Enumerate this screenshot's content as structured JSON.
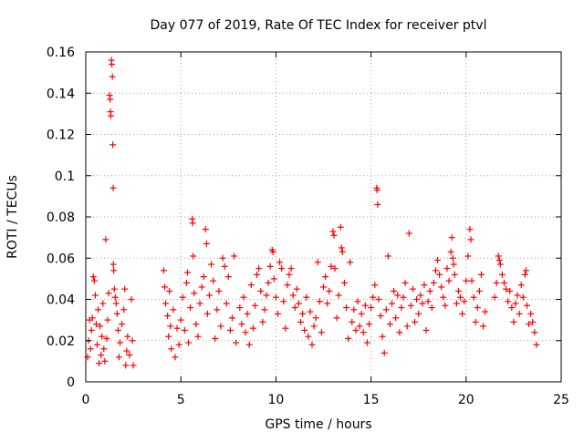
{
  "chart_data": {
    "type": "scatter",
    "title": "Day 077 of 2019, Rate Of TEC Index for receiver ptvl",
    "xlabel": "GPS time / hours",
    "ylabel": "ROTI / TECUs",
    "xlim": [
      0,
      25
    ],
    "ylim": [
      0,
      0.16
    ],
    "x_ticks": [
      0,
      5,
      10,
      15,
      20,
      25
    ],
    "x_tick_labels": [
      "0",
      "5",
      "10",
      "15",
      "20",
      "25"
    ],
    "y_ticks": [
      0,
      0.02,
      0.04,
      0.06,
      0.08,
      0.1,
      0.12,
      0.14,
      0.16
    ],
    "y_tick_labels": [
      "0",
      "0.02",
      "0.04",
      "0.06",
      "0.08",
      "0.1",
      "0.12",
      "0.14",
      "0.16"
    ],
    "grid": true,
    "marker": "+",
    "color": "#ff0000",
    "series": [
      {
        "name": "ROTI",
        "points": [
          [
            0.1,
            0.012
          ],
          [
            0.15,
            0.02
          ],
          [
            0.2,
            0.03
          ],
          [
            0.25,
            0.016
          ],
          [
            0.3,
            0.025
          ],
          [
            0.35,
            0.031
          ],
          [
            0.4,
            0.051
          ],
          [
            0.45,
            0.049
          ],
          [
            0.5,
            0.042
          ],
          [
            0.55,
            0.028
          ],
          [
            0.6,
            0.018
          ],
          [
            0.65,
            0.035
          ],
          [
            0.7,
            0.009
          ],
          [
            0.75,
            0.027
          ],
          [
            0.8,
            0.013
          ],
          [
            0.85,
            0.022
          ],
          [
            0.9,
            0.038
          ],
          [
            0.95,
            0.016
          ],
          [
            1.0,
            0.01
          ],
          [
            1.05,
            0.069
          ],
          [
            1.1,
            0.021
          ],
          [
            1.15,
            0.03
          ],
          [
            1.2,
            0.043
          ],
          [
            1.25,
            0.139
          ],
          [
            1.28,
            0.137
          ],
          [
            1.3,
            0.131
          ],
          [
            1.32,
            0.129
          ],
          [
            1.35,
            0.156
          ],
          [
            1.37,
            0.154
          ],
          [
            1.4,
            0.148
          ],
          [
            1.42,
            0.115
          ],
          [
            1.44,
            0.094
          ],
          [
            1.45,
            0.057
          ],
          [
            1.47,
            0.054
          ],
          [
            1.5,
            0.045
          ],
          [
            1.55,
            0.041
          ],
          [
            1.6,
            0.038
          ],
          [
            1.65,
            0.033
          ],
          [
            1.7,
            0.025
          ],
          [
            1.75,
            0.012
          ],
          [
            1.8,
            0.019
          ],
          [
            1.9,
            0.028
          ],
          [
            2.0,
            0.035
          ],
          [
            2.05,
            0.045
          ],
          [
            2.1,
            0.008
          ],
          [
            2.15,
            0.015
          ],
          [
            2.2,
            0.022
          ],
          [
            2.3,
            0.013
          ],
          [
            2.4,
            0.04
          ],
          [
            2.45,
            0.02
          ],
          [
            2.5,
            0.008
          ],
          [
            4.1,
            0.054
          ],
          [
            4.15,
            0.046
          ],
          [
            4.2,
            0.038
          ],
          [
            4.3,
            0.032
          ],
          [
            4.35,
            0.022
          ],
          [
            4.4,
            0.044
          ],
          [
            4.45,
            0.027
          ],
          [
            4.5,
            0.016
          ],
          [
            4.6,
            0.035
          ],
          [
            4.7,
            0.012
          ],
          [
            4.8,
            0.026
          ],
          [
            4.9,
            0.018
          ],
          [
            5.0,
            0.03
          ],
          [
            5.1,
            0.041
          ],
          [
            5.2,
            0.025
          ],
          [
            5.3,
            0.048
          ],
          [
            5.35,
            0.053
          ],
          [
            5.4,
            0.019
          ],
          [
            5.5,
            0.036
          ],
          [
            5.6,
            0.079
          ],
          [
            5.62,
            0.077
          ],
          [
            5.65,
            0.061
          ],
          [
            5.7,
            0.043
          ],
          [
            5.8,
            0.028
          ],
          [
            5.9,
            0.022
          ],
          [
            6.0,
            0.038
          ],
          [
            6.1,
            0.046
          ],
          [
            6.2,
            0.051
          ],
          [
            6.3,
            0.074
          ],
          [
            6.35,
            0.067
          ],
          [
            6.4,
            0.033
          ],
          [
            6.5,
            0.042
          ],
          [
            6.6,
            0.057
          ],
          [
            6.7,
            0.049
          ],
          [
            6.8,
            0.021
          ],
          [
            6.9,
            0.035
          ],
          [
            7.0,
            0.044
          ],
          [
            7.1,
            0.027
          ],
          [
            7.2,
            0.06
          ],
          [
            7.3,
            0.056
          ],
          [
            7.4,
            0.038
          ],
          [
            7.5,
            0.051
          ],
          [
            7.6,
            0.025
          ],
          [
            7.7,
            0.031
          ],
          [
            7.8,
            0.061
          ],
          [
            7.9,
            0.019
          ],
          [
            8.1,
            0.036
          ],
          [
            8.2,
            0.028
          ],
          [
            8.3,
            0.041
          ],
          [
            8.4,
            0.024
          ],
          [
            8.5,
            0.033
          ],
          [
            8.6,
            0.018
          ],
          [
            8.7,
            0.047
          ],
          [
            8.8,
            0.026
          ],
          [
            8.9,
            0.037
          ],
          [
            9.0,
            0.052
          ],
          [
            9.1,
            0.055
          ],
          [
            9.2,
            0.044
          ],
          [
            9.3,
            0.029
          ],
          [
            9.4,
            0.035
          ],
          [
            9.5,
            0.042
          ],
          [
            9.6,
            0.048
          ],
          [
            9.7,
            0.056
          ],
          [
            9.8,
            0.064
          ],
          [
            9.85,
            0.063
          ],
          [
            9.9,
            0.05
          ],
          [
            10.0,
            0.041
          ],
          [
            10.1,
            0.033
          ],
          [
            10.2,
            0.058
          ],
          [
            10.3,
            0.055
          ],
          [
            10.4,
            0.039
          ],
          [
            10.5,
            0.026
          ],
          [
            10.6,
            0.047
          ],
          [
            10.7,
            0.052
          ],
          [
            10.8,
            0.055
          ],
          [
            10.9,
            0.042
          ],
          [
            11.0,
            0.036
          ],
          [
            11.1,
            0.045
          ],
          [
            11.2,
            0.038
          ],
          [
            11.3,
            0.029
          ],
          [
            11.4,
            0.033
          ],
          [
            11.5,
            0.025
          ],
          [
            11.6,
            0.041
          ],
          [
            11.7,
            0.022
          ],
          [
            11.8,
            0.034
          ],
          [
            11.9,
            0.018
          ],
          [
            12.0,
            0.027
          ],
          [
            12.1,
            0.031
          ],
          [
            12.2,
            0.058
          ],
          [
            12.3,
            0.039
          ],
          [
            12.4,
            0.024
          ],
          [
            12.5,
            0.046
          ],
          [
            12.6,
            0.051
          ],
          [
            12.7,
            0.038
          ],
          [
            12.8,
            0.044
          ],
          [
            12.9,
            0.056
          ],
          [
            13.0,
            0.073
          ],
          [
            13.05,
            0.071
          ],
          [
            13.1,
            0.055
          ],
          [
            13.2,
            0.031
          ],
          [
            13.3,
            0.042
          ],
          [
            13.4,
            0.075
          ],
          [
            13.45,
            0.065
          ],
          [
            13.5,
            0.063
          ],
          [
            13.6,
            0.048
          ],
          [
            13.7,
            0.036
          ],
          [
            13.8,
            0.021
          ],
          [
            13.9,
            0.058
          ],
          [
            14.0,
            0.029
          ],
          [
            14.1,
            0.035
          ],
          [
            14.2,
            0.025
          ],
          [
            14.3,
            0.039
          ],
          [
            14.4,
            0.027
          ],
          [
            14.5,
            0.033
          ],
          [
            14.6,
            0.024
          ],
          [
            14.7,
            0.037
          ],
          [
            14.8,
            0.019
          ],
          [
            14.9,
            0.028
          ],
          [
            15.0,
            0.036
          ],
          [
            15.1,
            0.041
          ],
          [
            15.2,
            0.047
          ],
          [
            15.3,
            0.094
          ],
          [
            15.32,
            0.093
          ],
          [
            15.35,
            0.086
          ],
          [
            15.4,
            0.04
          ],
          [
            15.5,
            0.032
          ],
          [
            15.6,
            0.022
          ],
          [
            15.7,
            0.014
          ],
          [
            15.8,
            0.035
          ],
          [
            15.9,
            0.061
          ],
          [
            16.0,
            0.028
          ],
          [
            16.1,
            0.038
          ],
          [
            16.2,
            0.044
          ],
          [
            16.3,
            0.031
          ],
          [
            16.4,
            0.042
          ],
          [
            16.5,
            0.024
          ],
          [
            16.6,
            0.036
          ],
          [
            16.7,
            0.041
          ],
          [
            16.8,
            0.048
          ],
          [
            16.9,
            0.027
          ],
          [
            17.0,
            0.072
          ],
          [
            17.1,
            0.037
          ],
          [
            17.2,
            0.045
          ],
          [
            17.3,
            0.029
          ],
          [
            17.4,
            0.04
          ],
          [
            17.5,
            0.033
          ],
          [
            17.6,
            0.042
          ],
          [
            17.7,
            0.038
          ],
          [
            17.8,
            0.047
          ],
          [
            17.9,
            0.025
          ],
          [
            18.0,
            0.039
          ],
          [
            18.1,
            0.044
          ],
          [
            18.2,
            0.036
          ],
          [
            18.3,
            0.048
          ],
          [
            18.4,
            0.054
          ],
          [
            18.5,
            0.059
          ],
          [
            18.6,
            0.052
          ],
          [
            18.7,
            0.046
          ],
          [
            18.8,
            0.041
          ],
          [
            18.9,
            0.037
          ],
          [
            19.0,
            0.055
          ],
          [
            19.1,
            0.049
          ],
          [
            19.2,
            0.063
          ],
          [
            19.25,
            0.07
          ],
          [
            19.3,
            0.06
          ],
          [
            19.35,
            0.057
          ],
          [
            19.4,
            0.052
          ],
          [
            19.5,
            0.038
          ],
          [
            19.6,
            0.044
          ],
          [
            19.7,
            0.041
          ],
          [
            19.8,
            0.033
          ],
          [
            19.9,
            0.039
          ],
          [
            20.0,
            0.049
          ],
          [
            20.1,
            0.061
          ],
          [
            20.2,
            0.074
          ],
          [
            20.25,
            0.069
          ],
          [
            20.3,
            0.049
          ],
          [
            20.4,
            0.041
          ],
          [
            20.5,
            0.029
          ],
          [
            20.6,
            0.036
          ],
          [
            20.7,
            0.044
          ],
          [
            20.8,
            0.052
          ],
          [
            20.9,
            0.027
          ],
          [
            21.0,
            0.034
          ],
          [
            21.5,
            0.041
          ],
          [
            21.6,
            0.048
          ],
          [
            21.7,
            0.061
          ],
          [
            21.75,
            0.059
          ],
          [
            21.8,
            0.057
          ],
          [
            21.9,
            0.052
          ],
          [
            22.0,
            0.048
          ],
          [
            22.1,
            0.045
          ],
          [
            22.2,
            0.039
          ],
          [
            22.3,
            0.044
          ],
          [
            22.4,
            0.036
          ],
          [
            22.5,
            0.029
          ],
          [
            22.6,
            0.038
          ],
          [
            22.7,
            0.042
          ],
          [
            22.8,
            0.033
          ],
          [
            22.9,
            0.047
          ],
          [
            23.0,
            0.041
          ],
          [
            23.1,
            0.052
          ],
          [
            23.15,
            0.054
          ],
          [
            23.2,
            0.037
          ],
          [
            23.3,
            0.028
          ],
          [
            23.4,
            0.033
          ],
          [
            23.5,
            0.029
          ],
          [
            23.6,
            0.024
          ],
          [
            23.7,
            0.018
          ]
        ]
      }
    ]
  }
}
